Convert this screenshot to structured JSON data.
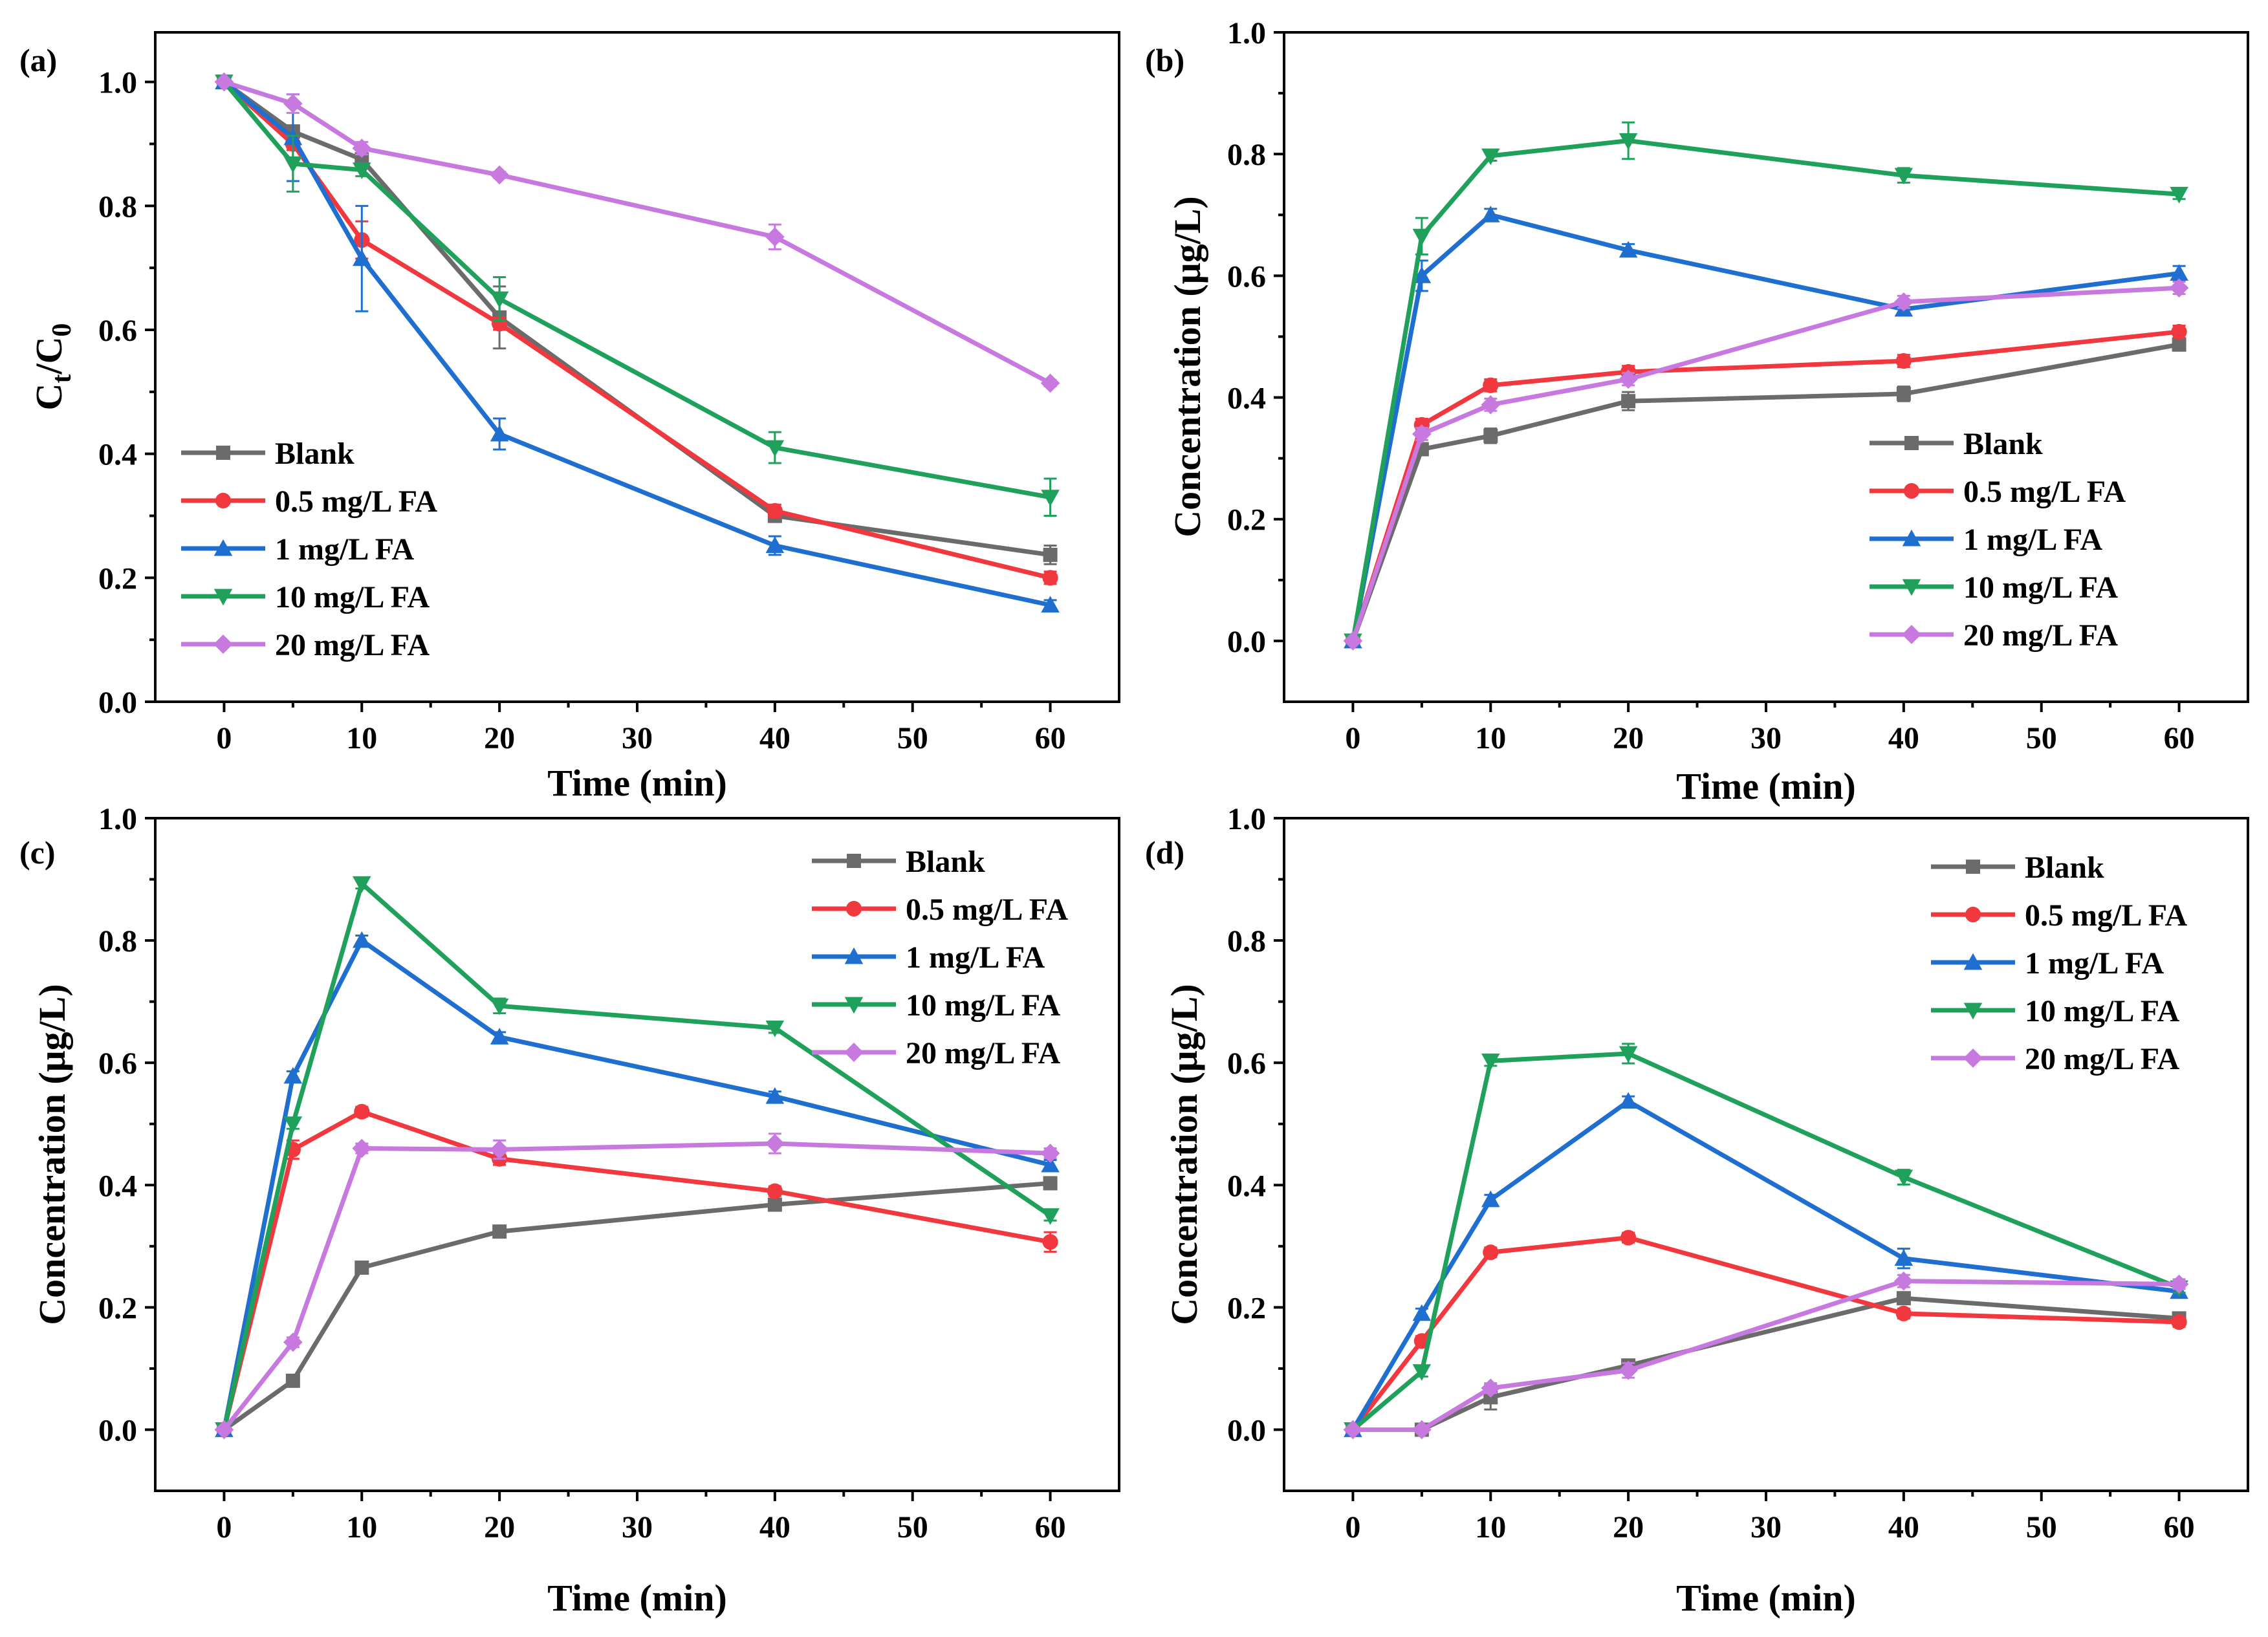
{
  "colors": {
    "Blank": "#6b6b6b",
    "0.5 mg/L FA": "#f0383e",
    "1 mg/L FA": "#1f6fd1",
    "10 mg/L FA": "#1fa15c",
    "20 mg/L FA": "#c779e0"
  },
  "markers": {
    "Blank": "square",
    "0.5 mg/L FA": "circle",
    "1 mg/L FA": "triangle-up",
    "10 mg/L FA": "triangle-down",
    "20 mg/L FA": "diamond"
  },
  "chart_data": [
    {
      "type": "line",
      "panel_label": "(a)",
      "xlabel": "Time (min)",
      "ylabel_main": "C",
      "ylabel_sub1": "t",
      "ylabel_mid": "/C",
      "ylabel_sub2": "0",
      "xlim": [
        -5,
        65
      ],
      "ylim": [
        0,
        1.08
      ],
      "xticks": [
        0,
        10,
        20,
        30,
        40,
        50,
        60
      ],
      "yticks": [
        0.0,
        0.2,
        0.4,
        0.6,
        0.8,
        1.0
      ],
      "ytick_labels": [
        "0.0",
        "0.2",
        "0.4",
        "0.6",
        "0.8",
        "1.0"
      ],
      "legend_position": "bottom-left",
      "x": [
        0,
        5,
        10,
        20,
        40,
        60
      ],
      "series": [
        {
          "name": "Blank",
          "values": [
            1.0,
            0.92,
            0.875,
            0.62,
            0.3,
            0.237
          ],
          "errors": [
            0,
            0.01,
            0.01,
            0.05,
            0.01,
            0.015
          ]
        },
        {
          "name": "0.5 mg/L FA",
          "values": [
            1.0,
            0.9,
            0.745,
            0.61,
            0.308,
            0.2
          ],
          "errors": [
            0,
            0.01,
            0.03,
            0.01,
            0.01,
            0.01
          ]
        },
        {
          "name": "1 mg/L FA",
          "values": [
            1.0,
            0.91,
            0.715,
            0.432,
            0.252,
            0.156
          ],
          "errors": [
            0,
            0.07,
            0.085,
            0.025,
            0.015,
            0.008
          ]
        },
        {
          "name": "10 mg/L FA",
          "values": [
            1.0,
            0.868,
            0.858,
            0.65,
            0.41,
            0.33
          ],
          "errors": [
            0,
            0.045,
            0.01,
            0.035,
            0.025,
            0.03
          ]
        },
        {
          "name": "20 mg/L FA",
          "values": [
            1.0,
            0.965,
            0.893,
            0.85,
            0.75,
            0.514
          ],
          "errors": [
            0,
            0.015,
            0.01,
            0.005,
            0.02,
            0.005
          ]
        }
      ]
    },
    {
      "type": "line",
      "panel_label": "(b)",
      "xlabel": "Time (min)",
      "ylabel": "Concentration (μg/L)",
      "xlim": [
        -5,
        65
      ],
      "ylim": [
        -0.1,
        1.0
      ],
      "xticks": [
        0,
        10,
        20,
        30,
        40,
        50,
        60
      ],
      "yticks": [
        0.0,
        0.2,
        0.4,
        0.6,
        0.8,
        1.0
      ],
      "ytick_labels": [
        "0.0",
        "0.2",
        "0.4",
        "0.6",
        "0.8",
        "1.0"
      ],
      "legend_position": "bottom-right",
      "x": [
        0,
        5,
        10,
        20,
        40,
        60
      ],
      "series": [
        {
          "name": "Blank",
          "values": [
            0,
            0.315,
            0.337,
            0.394,
            0.406,
            0.487
          ],
          "errors": [
            0,
            0.01,
            0.012,
            0.015,
            0.012,
            0.01
          ]
        },
        {
          "name": "0.5 mg/L FA",
          "values": [
            0,
            0.355,
            0.42,
            0.442,
            0.46,
            0.508
          ],
          "errors": [
            0,
            0.01,
            0.01,
            0.01,
            0.01,
            0.01
          ]
        },
        {
          "name": "1 mg/L FA",
          "values": [
            0,
            0.6,
            0.7,
            0.642,
            0.545,
            0.604
          ],
          "errors": [
            0,
            0.025,
            0.01,
            0.01,
            0.01,
            0.012
          ]
        },
        {
          "name": "10 mg/L FA",
          "values": [
            0,
            0.665,
            0.797,
            0.822,
            0.765,
            0.734
          ],
          "errors": [
            0,
            0.03,
            0.008,
            0.03,
            0.012,
            0.008
          ]
        },
        {
          "name": "20 mg/L FA",
          "values": [
            0,
            0.34,
            0.388,
            0.43,
            0.557,
            0.58
          ],
          "errors": [
            0,
            0.01,
            0.01,
            0.01,
            0.01,
            0.01
          ]
        }
      ]
    },
    {
      "type": "line",
      "panel_label": "(c)",
      "xlabel": "Time (min)",
      "ylabel": "Concentration (μg/L)",
      "xlim": [
        -5,
        65
      ],
      "ylim": [
        -0.1,
        1.0
      ],
      "xticks": [
        0,
        10,
        20,
        30,
        40,
        50,
        60
      ],
      "yticks": [
        0.0,
        0.2,
        0.4,
        0.6,
        0.8,
        1.0
      ],
      "ytick_labels": [
        "0.0",
        "0.2",
        "0.4",
        "0.6",
        "0.8",
        "1.0"
      ],
      "legend_position": "top-right",
      "x": [
        0,
        5,
        10,
        20,
        40,
        60
      ],
      "series": [
        {
          "name": "Blank",
          "values": [
            0,
            0.08,
            0.265,
            0.324,
            0.368,
            0.403
          ],
          "errors": [
            0,
            0.005,
            0.008,
            0.008,
            0.008,
            0.008
          ]
        },
        {
          "name": "0.5 mg/L FA",
          "values": [
            0,
            0.458,
            0.52,
            0.443,
            0.39,
            0.307
          ],
          "errors": [
            0,
            0.015,
            0.008,
            0.01,
            0.008,
            0.016
          ]
        },
        {
          "name": "1 mg/L FA",
          "values": [
            0,
            0.578,
            0.8,
            0.642,
            0.545,
            0.433
          ],
          "errors": [
            0,
            0.008,
            0.008,
            0.008,
            0.008,
            0.008
          ]
        },
        {
          "name": "10 mg/L FA",
          "values": [
            0,
            0.5,
            0.893,
            0.693,
            0.657,
            0.35
          ],
          "errors": [
            0,
            0.008,
            0.008,
            0.012,
            0.008,
            0.008
          ]
        },
        {
          "name": "20 mg/L FA",
          "values": [
            0,
            0.143,
            0.46,
            0.458,
            0.468,
            0.452
          ],
          "errors": [
            0,
            0.008,
            0.008,
            0.015,
            0.016,
            0.008
          ]
        }
      ]
    },
    {
      "type": "line",
      "panel_label": "(d)",
      "xlabel": "Time (min)",
      "ylabel": "Concentration (μg/L)",
      "xlim": [
        -5,
        65
      ],
      "ylim": [
        -0.1,
        1.0
      ],
      "xticks": [
        0,
        10,
        20,
        30,
        40,
        50,
        60
      ],
      "yticks": [
        0.0,
        0.2,
        0.4,
        0.6,
        0.8,
        1.0
      ],
      "ytick_labels": [
        "0.0",
        "0.2",
        "0.4",
        "0.6",
        "0.8",
        "1.0"
      ],
      "legend_position": "top-right",
      "x": [
        0,
        5,
        10,
        20,
        40,
        60
      ],
      "series": [
        {
          "name": "Blank",
          "values": [
            0,
            0,
            0.053,
            0.105,
            0.215,
            0.182
          ],
          "errors": [
            0,
            0,
            0.02,
            0.008,
            0.008,
            0.008
          ]
        },
        {
          "name": "0.5 mg/L FA",
          "values": [
            0,
            0.145,
            0.29,
            0.314,
            0.19,
            0.176
          ],
          "errors": [
            0,
            0.008,
            0.008,
            0.008,
            0.008,
            0.008
          ]
        },
        {
          "name": "1 mg/L FA",
          "values": [
            0,
            0.19,
            0.376,
            0.537,
            0.28,
            0.226
          ],
          "errors": [
            0,
            0.008,
            0.008,
            0.008,
            0.016,
            0.008
          ]
        },
        {
          "name": "10 mg/L FA",
          "values": [
            0,
            0.095,
            0.603,
            0.615,
            0.413,
            0.232
          ],
          "errors": [
            0,
            0.008,
            0.008,
            0.016,
            0.012,
            0.008
          ]
        },
        {
          "name": "20 mg/L FA",
          "values": [
            0,
            0,
            0.068,
            0.097,
            0.243,
            0.238
          ],
          "errors": [
            0,
            0,
            0.008,
            0.012,
            0.01,
            0.008
          ]
        }
      ]
    }
  ]
}
